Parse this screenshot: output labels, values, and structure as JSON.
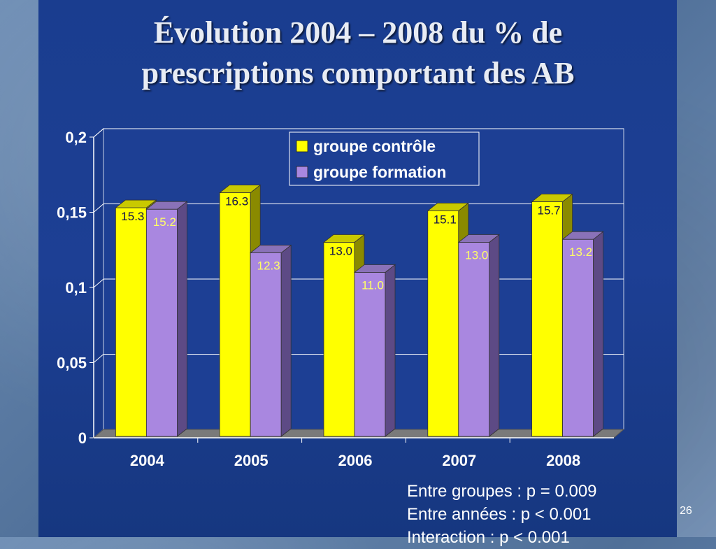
{
  "slide": {
    "title_line1": "Évolution 2004 – 2008 du % de",
    "title_line2": "prescriptions comportant des AB",
    "page_number": "26"
  },
  "stats": [
    "Entre groupes : p = 0.009",
    "Entre années : p < 0.001",
    "Interaction : p < 0.001"
  ],
  "chart_data": {
    "type": "bar",
    "title": "",
    "xlabel": "",
    "ylabel": "",
    "categories": [
      "2004",
      "2005",
      "2006",
      "2007",
      "2008"
    ],
    "ylim": [
      0,
      0.2
    ],
    "yticks": [
      "0",
      "0,05",
      "0,1",
      "0,15",
      "0,2"
    ],
    "grid": true,
    "legend_position": "top-right",
    "series": [
      {
        "name": "groupe contrôle",
        "color": "#ffff00",
        "values": [
          0.153,
          0.163,
          0.13,
          0.151,
          0.157
        ],
        "labels": [
          "15.3",
          "16.3",
          "13.0",
          "15.1",
          "15.7"
        ]
      },
      {
        "name": "groupe formation",
        "color": "#a987e0",
        "values": [
          0.152,
          0.123,
          0.11,
          0.13,
          0.132
        ],
        "labels": [
          "15.2",
          "12.3",
          "11.0",
          "13.0",
          "13.2"
        ]
      }
    ]
  }
}
